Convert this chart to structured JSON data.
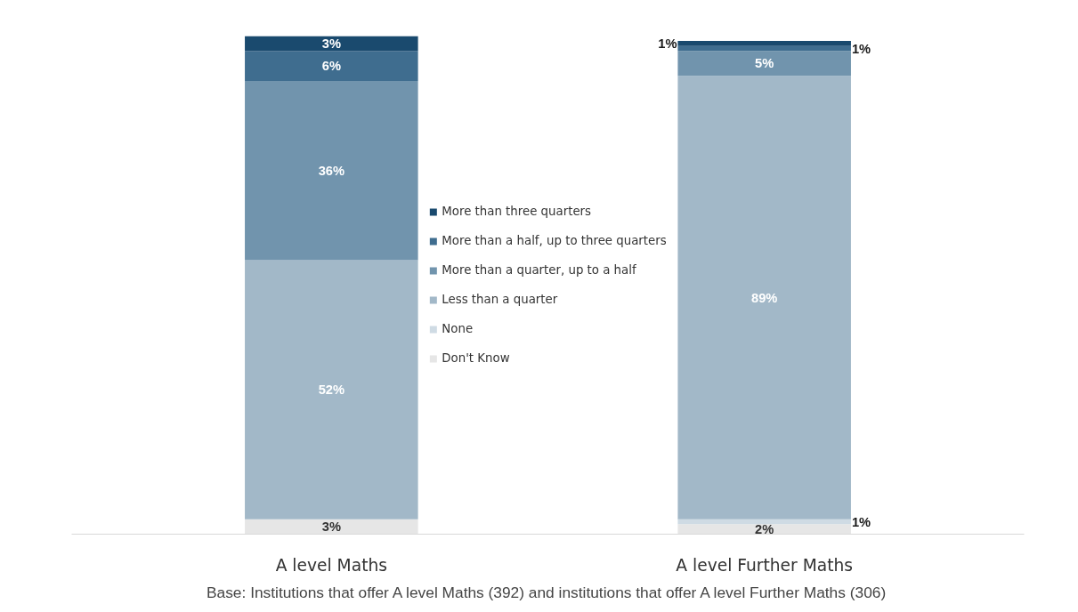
{
  "chart_data": {
    "type": "bar",
    "stacked": true,
    "categories": [
      "A level Maths",
      "A level Further Maths"
    ],
    "series": [
      {
        "name": "Don't Know",
        "color": "#e6e6e6",
        "values": [
          3,
          2
        ],
        "value_labels": [
          "3%",
          "2%"
        ]
      },
      {
        "name": "None",
        "color": "#cfdbe4",
        "values": [
          null,
          1
        ],
        "value_labels": [
          null,
          "1%"
        ]
      },
      {
        "name": "Less than a quarter",
        "color": "#a2b8c8",
        "values": [
          52,
          89
        ],
        "value_labels": [
          "52%",
          "89%"
        ]
      },
      {
        "name": "More than a quarter, up to a half",
        "color": "#7194ad",
        "values": [
          36,
          5
        ],
        "value_labels": [
          "36%",
          "5%"
        ]
      },
      {
        "name": "More than a half, up to three quarters",
        "color": "#3f6d8f",
        "values": [
          6,
          1
        ],
        "value_labels": [
          "6%",
          "1%"
        ]
      },
      {
        "name": "More than three quarters",
        "color": "#1a4a6e",
        "values": [
          3,
          1
        ],
        "value_labels": [
          "3%",
          "1%"
        ]
      }
    ],
    "legend": "center",
    "grid": false,
    "tick_labels": "x",
    "annotations": [
      "Base: Institutions that offer A level Maths (392) and institutions that offer A level Further Maths (306)"
    ]
  }
}
